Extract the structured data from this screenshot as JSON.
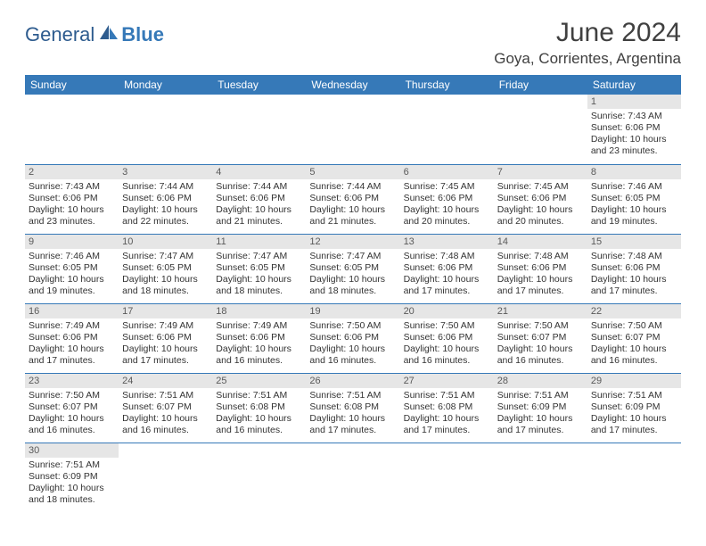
{
  "logo": {
    "text1": "General",
    "text2": "Blue"
  },
  "title": "June 2024",
  "location": "Goya, Corrientes, Argentina",
  "colors": {
    "header_bg": "#3679b8",
    "header_text": "#ffffff",
    "daynum_bg": "#e6e6e6",
    "cell_border": "#3679b8",
    "title_color": "#404040"
  },
  "dayHeaders": [
    "Sunday",
    "Monday",
    "Tuesday",
    "Wednesday",
    "Thursday",
    "Friday",
    "Saturday"
  ],
  "weeks": [
    [
      null,
      null,
      null,
      null,
      null,
      null,
      {
        "n": "1",
        "sr": "7:43 AM",
        "ss": "6:06 PM",
        "dl": "10 hours and 23 minutes."
      }
    ],
    [
      {
        "n": "2",
        "sr": "7:43 AM",
        "ss": "6:06 PM",
        "dl": "10 hours and 23 minutes."
      },
      {
        "n": "3",
        "sr": "7:44 AM",
        "ss": "6:06 PM",
        "dl": "10 hours and 22 minutes."
      },
      {
        "n": "4",
        "sr": "7:44 AM",
        "ss": "6:06 PM",
        "dl": "10 hours and 21 minutes."
      },
      {
        "n": "5",
        "sr": "7:44 AM",
        "ss": "6:06 PM",
        "dl": "10 hours and 21 minutes."
      },
      {
        "n": "6",
        "sr": "7:45 AM",
        "ss": "6:06 PM",
        "dl": "10 hours and 20 minutes."
      },
      {
        "n": "7",
        "sr": "7:45 AM",
        "ss": "6:06 PM",
        "dl": "10 hours and 20 minutes."
      },
      {
        "n": "8",
        "sr": "7:46 AM",
        "ss": "6:05 PM",
        "dl": "10 hours and 19 minutes."
      }
    ],
    [
      {
        "n": "9",
        "sr": "7:46 AM",
        "ss": "6:05 PM",
        "dl": "10 hours and 19 minutes."
      },
      {
        "n": "10",
        "sr": "7:47 AM",
        "ss": "6:05 PM",
        "dl": "10 hours and 18 minutes."
      },
      {
        "n": "11",
        "sr": "7:47 AM",
        "ss": "6:05 PM",
        "dl": "10 hours and 18 minutes."
      },
      {
        "n": "12",
        "sr": "7:47 AM",
        "ss": "6:05 PM",
        "dl": "10 hours and 18 minutes."
      },
      {
        "n": "13",
        "sr": "7:48 AM",
        "ss": "6:06 PM",
        "dl": "10 hours and 17 minutes."
      },
      {
        "n": "14",
        "sr": "7:48 AM",
        "ss": "6:06 PM",
        "dl": "10 hours and 17 minutes."
      },
      {
        "n": "15",
        "sr": "7:48 AM",
        "ss": "6:06 PM",
        "dl": "10 hours and 17 minutes."
      }
    ],
    [
      {
        "n": "16",
        "sr": "7:49 AM",
        "ss": "6:06 PM",
        "dl": "10 hours and 17 minutes."
      },
      {
        "n": "17",
        "sr": "7:49 AM",
        "ss": "6:06 PM",
        "dl": "10 hours and 17 minutes."
      },
      {
        "n": "18",
        "sr": "7:49 AM",
        "ss": "6:06 PM",
        "dl": "10 hours and 16 minutes."
      },
      {
        "n": "19",
        "sr": "7:50 AM",
        "ss": "6:06 PM",
        "dl": "10 hours and 16 minutes."
      },
      {
        "n": "20",
        "sr": "7:50 AM",
        "ss": "6:06 PM",
        "dl": "10 hours and 16 minutes."
      },
      {
        "n": "21",
        "sr": "7:50 AM",
        "ss": "6:07 PM",
        "dl": "10 hours and 16 minutes."
      },
      {
        "n": "22",
        "sr": "7:50 AM",
        "ss": "6:07 PM",
        "dl": "10 hours and 16 minutes."
      }
    ],
    [
      {
        "n": "23",
        "sr": "7:50 AM",
        "ss": "6:07 PM",
        "dl": "10 hours and 16 minutes."
      },
      {
        "n": "24",
        "sr": "7:51 AM",
        "ss": "6:07 PM",
        "dl": "10 hours and 16 minutes."
      },
      {
        "n": "25",
        "sr": "7:51 AM",
        "ss": "6:08 PM",
        "dl": "10 hours and 16 minutes."
      },
      {
        "n": "26",
        "sr": "7:51 AM",
        "ss": "6:08 PM",
        "dl": "10 hours and 17 minutes."
      },
      {
        "n": "27",
        "sr": "7:51 AM",
        "ss": "6:08 PM",
        "dl": "10 hours and 17 minutes."
      },
      {
        "n": "28",
        "sr": "7:51 AM",
        "ss": "6:09 PM",
        "dl": "10 hours and 17 minutes."
      },
      {
        "n": "29",
        "sr": "7:51 AM",
        "ss": "6:09 PM",
        "dl": "10 hours and 17 minutes."
      }
    ],
    [
      {
        "n": "30",
        "sr": "7:51 AM",
        "ss": "6:09 PM",
        "dl": "10 hours and 18 minutes."
      },
      null,
      null,
      null,
      null,
      null,
      null
    ]
  ],
  "labels": {
    "sunrise": "Sunrise:",
    "sunset": "Sunset:",
    "daylight": "Daylight:"
  }
}
